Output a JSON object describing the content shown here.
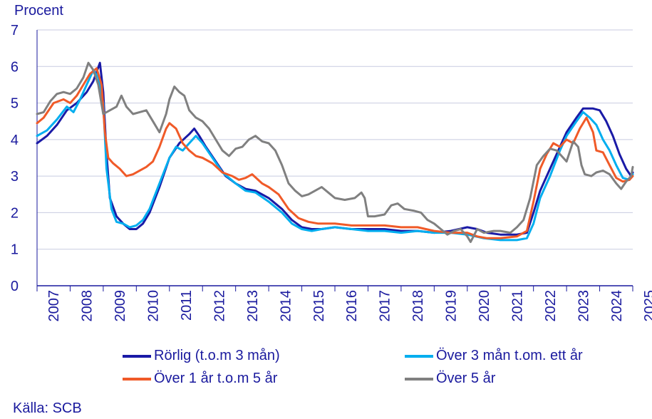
{
  "chart_data": {
    "type": "line",
    "ylabel": "Procent",
    "ylim": [
      0,
      7
    ],
    "yticks": [
      "0",
      "1",
      "2",
      "3",
      "4",
      "5",
      "6",
      "7"
    ],
    "xlim": [
      2007.0,
      2025.0
    ],
    "xticks": [
      "2007",
      "2008",
      "2009",
      "2010",
      "2011",
      "2012",
      "2013",
      "2014",
      "2015",
      "2016",
      "2017",
      "2018",
      "2019",
      "2020",
      "2021",
      "2022",
      "2023",
      "2024",
      "2025"
    ],
    "grid": true,
    "legend_position": "bottom",
    "source": "Källa: SCB",
    "series": [
      {
        "name": "Rörlig (t.o.m 3 mån)",
        "color": "#1a1aa6",
        "points": [
          [
            2007.0,
            3.9
          ],
          [
            2007.3,
            4.1
          ],
          [
            2007.6,
            4.4
          ],
          [
            2007.9,
            4.8
          ],
          [
            2008.2,
            5.0
          ],
          [
            2008.5,
            5.3
          ],
          [
            2008.7,
            5.6
          ],
          [
            2008.9,
            6.1
          ],
          [
            2009.0,
            5.3
          ],
          [
            2009.1,
            3.6
          ],
          [
            2009.2,
            2.4
          ],
          [
            2009.4,
            1.9
          ],
          [
            2009.6,
            1.7
          ],
          [
            2009.8,
            1.55
          ],
          [
            2010.0,
            1.55
          ],
          [
            2010.2,
            1.7
          ],
          [
            2010.4,
            2.0
          ],
          [
            2010.7,
            2.7
          ],
          [
            2011.0,
            3.5
          ],
          [
            2011.3,
            3.9
          ],
          [
            2011.6,
            4.15
          ],
          [
            2011.75,
            4.3
          ],
          [
            2011.9,
            4.1
          ],
          [
            2012.1,
            3.8
          ],
          [
            2012.4,
            3.4
          ],
          [
            2012.7,
            3.0
          ],
          [
            2013.0,
            2.8
          ],
          [
            2013.3,
            2.65
          ],
          [
            2013.6,
            2.6
          ],
          [
            2014.0,
            2.4
          ],
          [
            2014.4,
            2.1
          ],
          [
            2014.7,
            1.8
          ],
          [
            2015.0,
            1.6
          ],
          [
            2015.3,
            1.55
          ],
          [
            2015.6,
            1.55
          ],
          [
            2016.0,
            1.6
          ],
          [
            2016.5,
            1.55
          ],
          [
            2017.0,
            1.55
          ],
          [
            2017.5,
            1.55
          ],
          [
            2018.0,
            1.5
          ],
          [
            2018.5,
            1.5
          ],
          [
            2019.0,
            1.45
          ],
          [
            2019.5,
            1.5
          ],
          [
            2020.0,
            1.6
          ],
          [
            2020.3,
            1.55
          ],
          [
            2020.6,
            1.45
          ],
          [
            2021.0,
            1.4
          ],
          [
            2021.5,
            1.4
          ],
          [
            2021.8,
            1.45
          ],
          [
            2022.0,
            2.0
          ],
          [
            2022.2,
            2.6
          ],
          [
            2022.5,
            3.2
          ],
          [
            2022.8,
            3.8
          ],
          [
            2023.0,
            4.2
          ],
          [
            2023.3,
            4.6
          ],
          [
            2023.5,
            4.85
          ],
          [
            2023.8,
            4.85
          ],
          [
            2024.0,
            4.8
          ],
          [
            2024.2,
            4.5
          ],
          [
            2024.4,
            4.1
          ],
          [
            2024.6,
            3.6
          ],
          [
            2024.8,
            3.2
          ],
          [
            2024.95,
            3.0
          ],
          [
            2025.0,
            3.1
          ]
        ]
      },
      {
        "name": "Över 3 mån t.om. ett år",
        "color": "#00aeef",
        "points": [
          [
            2007.0,
            4.1
          ],
          [
            2007.3,
            4.25
          ],
          [
            2007.6,
            4.55
          ],
          [
            2007.9,
            4.9
          ],
          [
            2008.1,
            4.75
          ],
          [
            2008.3,
            5.1
          ],
          [
            2008.5,
            5.5
          ],
          [
            2008.7,
            5.9
          ],
          [
            2008.85,
            5.7
          ],
          [
            2009.0,
            5.0
          ],
          [
            2009.1,
            3.2
          ],
          [
            2009.25,
            2.1
          ],
          [
            2009.4,
            1.75
          ],
          [
            2009.6,
            1.7
          ],
          [
            2009.8,
            1.6
          ],
          [
            2010.0,
            1.65
          ],
          [
            2010.2,
            1.8
          ],
          [
            2010.4,
            2.1
          ],
          [
            2010.7,
            2.8
          ],
          [
            2011.0,
            3.5
          ],
          [
            2011.2,
            3.8
          ],
          [
            2011.4,
            3.7
          ],
          [
            2011.6,
            3.9
          ],
          [
            2011.8,
            4.1
          ],
          [
            2012.0,
            3.9
          ],
          [
            2012.3,
            3.5
          ],
          [
            2012.6,
            3.1
          ],
          [
            2013.0,
            2.8
          ],
          [
            2013.3,
            2.6
          ],
          [
            2013.6,
            2.55
          ],
          [
            2014.0,
            2.3
          ],
          [
            2014.4,
            2.0
          ],
          [
            2014.7,
            1.7
          ],
          [
            2015.0,
            1.55
          ],
          [
            2015.3,
            1.5
          ],
          [
            2015.6,
            1.55
          ],
          [
            2016.0,
            1.6
          ],
          [
            2016.5,
            1.55
          ],
          [
            2017.0,
            1.5
          ],
          [
            2017.5,
            1.5
          ],
          [
            2018.0,
            1.45
          ],
          [
            2018.5,
            1.5
          ],
          [
            2019.0,
            1.45
          ],
          [
            2019.5,
            1.45
          ],
          [
            2020.0,
            1.4
          ],
          [
            2020.5,
            1.3
          ],
          [
            2021.0,
            1.25
          ],
          [
            2021.5,
            1.25
          ],
          [
            2021.8,
            1.3
          ],
          [
            2022.0,
            1.7
          ],
          [
            2022.2,
            2.4
          ],
          [
            2022.5,
            3.0
          ],
          [
            2022.8,
            3.7
          ],
          [
            2023.0,
            4.1
          ],
          [
            2023.3,
            4.5
          ],
          [
            2023.5,
            4.75
          ],
          [
            2023.7,
            4.6
          ],
          [
            2023.9,
            4.4
          ],
          [
            2024.1,
            4.0
          ],
          [
            2024.3,
            3.7
          ],
          [
            2024.5,
            3.3
          ],
          [
            2024.7,
            2.95
          ],
          [
            2024.9,
            2.9
          ],
          [
            2025.0,
            3.05
          ]
        ]
      },
      {
        "name": "Över 1 år t.o.m 5 år",
        "color": "#f05a28",
        "points": [
          [
            2007.0,
            4.45
          ],
          [
            2007.2,
            4.6
          ],
          [
            2007.5,
            5.0
          ],
          [
            2007.8,
            5.1
          ],
          [
            2008.0,
            5.0
          ],
          [
            2008.2,
            5.2
          ],
          [
            2008.4,
            5.5
          ],
          [
            2008.6,
            5.8
          ],
          [
            2008.8,
            5.95
          ],
          [
            2008.95,
            5.5
          ],
          [
            2009.05,
            4.2
          ],
          [
            2009.15,
            3.5
          ],
          [
            2009.3,
            3.35
          ],
          [
            2009.5,
            3.2
          ],
          [
            2009.7,
            3.0
          ],
          [
            2009.9,
            3.05
          ],
          [
            2010.1,
            3.15
          ],
          [
            2010.3,
            3.25
          ],
          [
            2010.5,
            3.4
          ],
          [
            2010.7,
            3.8
          ],
          [
            2010.9,
            4.3
          ],
          [
            2011.0,
            4.45
          ],
          [
            2011.2,
            4.3
          ],
          [
            2011.4,
            3.9
          ],
          [
            2011.6,
            3.7
          ],
          [
            2011.8,
            3.55
          ],
          [
            2012.0,
            3.5
          ],
          [
            2012.3,
            3.35
          ],
          [
            2012.6,
            3.1
          ],
          [
            2012.9,
            3.0
          ],
          [
            2013.1,
            2.9
          ],
          [
            2013.3,
            2.95
          ],
          [
            2013.5,
            3.05
          ],
          [
            2013.8,
            2.8
          ],
          [
            2014.0,
            2.7
          ],
          [
            2014.3,
            2.5
          ],
          [
            2014.6,
            2.1
          ],
          [
            2014.9,
            1.85
          ],
          [
            2015.2,
            1.75
          ],
          [
            2015.5,
            1.7
          ],
          [
            2015.8,
            1.7
          ],
          [
            2016.0,
            1.7
          ],
          [
            2016.5,
            1.65
          ],
          [
            2017.0,
            1.65
          ],
          [
            2017.5,
            1.65
          ],
          [
            2018.0,
            1.6
          ],
          [
            2018.5,
            1.6
          ],
          [
            2019.0,
            1.5
          ],
          [
            2019.5,
            1.45
          ],
          [
            2020.0,
            1.45
          ],
          [
            2020.3,
            1.35
          ],
          [
            2020.6,
            1.3
          ],
          [
            2021.0,
            1.3
          ],
          [
            2021.5,
            1.35
          ],
          [
            2021.8,
            1.5
          ],
          [
            2022.0,
            2.3
          ],
          [
            2022.2,
            3.2
          ],
          [
            2022.4,
            3.6
          ],
          [
            2022.6,
            3.9
          ],
          [
            2022.8,
            3.8
          ],
          [
            2023.0,
            4.0
          ],
          [
            2023.2,
            3.9
          ],
          [
            2023.4,
            4.3
          ],
          [
            2023.6,
            4.6
          ],
          [
            2023.8,
            4.2
          ],
          [
            2023.9,
            3.7
          ],
          [
            2024.1,
            3.65
          ],
          [
            2024.3,
            3.3
          ],
          [
            2024.5,
            2.95
          ],
          [
            2024.7,
            2.85
          ],
          [
            2024.9,
            2.9
          ],
          [
            2025.0,
            3.0
          ]
        ]
      },
      {
        "name": "Över 5 år",
        "color": "#808080",
        "points": [
          [
            2007.0,
            4.7
          ],
          [
            2007.2,
            4.75
          ],
          [
            2007.4,
            5.05
          ],
          [
            2007.6,
            5.25
          ],
          [
            2007.8,
            5.3
          ],
          [
            2008.0,
            5.25
          ],
          [
            2008.2,
            5.4
          ],
          [
            2008.4,
            5.7
          ],
          [
            2008.55,
            6.1
          ],
          [
            2008.7,
            5.9
          ],
          [
            2008.85,
            5.5
          ],
          [
            2009.0,
            4.7
          ],
          [
            2009.2,
            4.8
          ],
          [
            2009.4,
            4.9
          ],
          [
            2009.55,
            5.2
          ],
          [
            2009.7,
            4.9
          ],
          [
            2009.9,
            4.7
          ],
          [
            2010.1,
            4.75
          ],
          [
            2010.3,
            4.8
          ],
          [
            2010.5,
            4.5
          ],
          [
            2010.7,
            4.2
          ],
          [
            2010.9,
            4.7
          ],
          [
            2011.0,
            5.1
          ],
          [
            2011.15,
            5.45
          ],
          [
            2011.3,
            5.3
          ],
          [
            2011.45,
            5.2
          ],
          [
            2011.6,
            4.8
          ],
          [
            2011.8,
            4.6
          ],
          [
            2012.0,
            4.5
          ],
          [
            2012.2,
            4.3
          ],
          [
            2012.4,
            4.0
          ],
          [
            2012.6,
            3.7
          ],
          [
            2012.8,
            3.55
          ],
          [
            2013.0,
            3.75
          ],
          [
            2013.2,
            3.8
          ],
          [
            2013.4,
            4.0
          ],
          [
            2013.6,
            4.1
          ],
          [
            2013.8,
            3.95
          ],
          [
            2014.0,
            3.9
          ],
          [
            2014.2,
            3.7
          ],
          [
            2014.4,
            3.3
          ],
          [
            2014.6,
            2.8
          ],
          [
            2014.8,
            2.6
          ],
          [
            2015.0,
            2.45
          ],
          [
            2015.2,
            2.5
          ],
          [
            2015.4,
            2.6
          ],
          [
            2015.6,
            2.7
          ],
          [
            2015.8,
            2.55
          ],
          [
            2016.0,
            2.4
          ],
          [
            2016.3,
            2.35
          ],
          [
            2016.6,
            2.4
          ],
          [
            2016.8,
            2.55
          ],
          [
            2016.9,
            2.4
          ],
          [
            2017.0,
            1.9
          ],
          [
            2017.2,
            1.9
          ],
          [
            2017.5,
            1.95
          ],
          [
            2017.7,
            2.2
          ],
          [
            2017.9,
            2.25
          ],
          [
            2018.1,
            2.1
          ],
          [
            2018.4,
            2.05
          ],
          [
            2018.6,
            2.0
          ],
          [
            2018.8,
            1.8
          ],
          [
            2019.0,
            1.7
          ],
          [
            2019.2,
            1.55
          ],
          [
            2019.4,
            1.4
          ],
          [
            2019.6,
            1.5
          ],
          [
            2019.8,
            1.55
          ],
          [
            2020.0,
            1.35
          ],
          [
            2020.1,
            1.2
          ],
          [
            2020.3,
            1.55
          ],
          [
            2020.5,
            1.45
          ],
          [
            2020.8,
            1.5
          ],
          [
            2021.0,
            1.5
          ],
          [
            2021.3,
            1.45
          ],
          [
            2021.5,
            1.6
          ],
          [
            2021.7,
            1.8
          ],
          [
            2021.9,
            2.4
          ],
          [
            2022.1,
            3.3
          ],
          [
            2022.3,
            3.55
          ],
          [
            2022.5,
            3.75
          ],
          [
            2022.7,
            3.7
          ],
          [
            2022.9,
            3.5
          ],
          [
            2023.0,
            3.4
          ],
          [
            2023.2,
            3.95
          ],
          [
            2023.35,
            3.8
          ],
          [
            2023.45,
            3.3
          ],
          [
            2023.55,
            3.05
          ],
          [
            2023.75,
            3.0
          ],
          [
            2023.9,
            3.1
          ],
          [
            2024.1,
            3.15
          ],
          [
            2024.3,
            3.05
          ],
          [
            2024.5,
            2.8
          ],
          [
            2024.65,
            2.65
          ],
          [
            2024.8,
            2.85
          ],
          [
            2024.95,
            3.0
          ],
          [
            2025.0,
            3.25
          ]
        ]
      }
    ]
  }
}
